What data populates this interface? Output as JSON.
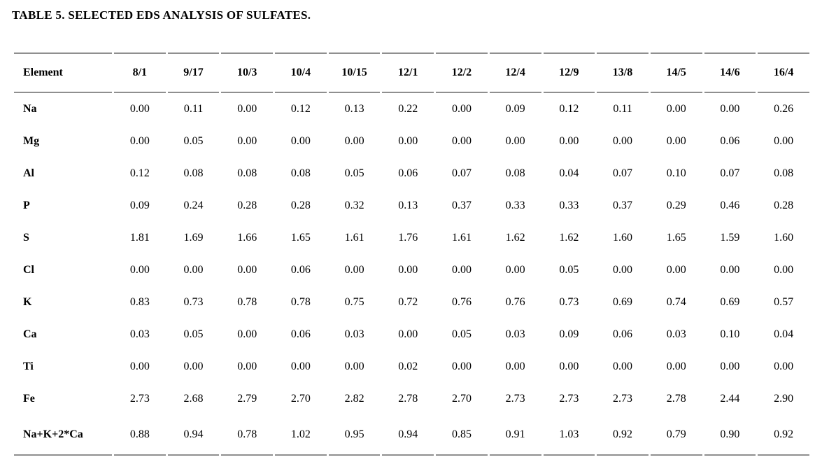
{
  "document": {
    "title": "TABLE 5. SELECTED EDS ANALYSIS OF SULFATES."
  },
  "styles": {
    "rule_color": "#8f8f8f",
    "text_color": "#000000",
    "background": "#ffffff"
  },
  "table": {
    "columns": [
      "Element",
      "8/1",
      "9/17",
      "10/3",
      "10/4",
      "10/15",
      "12/1",
      "12/2",
      "12/4",
      "12/9",
      "13/8",
      "14/5",
      "14/6",
      "16/4"
    ],
    "rows": [
      {
        "element": "Na",
        "values": [
          "0.00",
          "0.11",
          "0.00",
          "0.12",
          "0.13",
          "0.22",
          "0.00",
          "0.09",
          "0.12",
          "0.11",
          "0.00",
          "0.00",
          "0.26"
        ]
      },
      {
        "element": "Mg",
        "values": [
          "0.00",
          "0.05",
          "0.00",
          "0.00",
          "0.00",
          "0.00",
          "0.00",
          "0.00",
          "0.00",
          "0.00",
          "0.00",
          "0.06",
          "0.00"
        ]
      },
      {
        "element": "Al",
        "values": [
          "0.12",
          "0.08",
          "0.08",
          "0.08",
          "0.05",
          "0.06",
          "0.07",
          "0.08",
          "0.04",
          "0.07",
          "0.10",
          "0.07",
          "0.08"
        ]
      },
      {
        "element": "P",
        "values": [
          "0.09",
          "0.24",
          "0.28",
          "0.28",
          "0.32",
          "0.13",
          "0.37",
          "0.33",
          "0.33",
          "0.37",
          "0.29",
          "0.46",
          "0.28"
        ]
      },
      {
        "element": "S",
        "values": [
          "1.81",
          "1.69",
          "1.66",
          "1.65",
          "1.61",
          "1.76",
          "1.61",
          "1.62",
          "1.62",
          "1.60",
          "1.65",
          "1.59",
          "1.60"
        ]
      },
      {
        "element": "Cl",
        "values": [
          "0.00",
          "0.00",
          "0.00",
          "0.06",
          "0.00",
          "0.00",
          "0.00",
          "0.00",
          "0.05",
          "0.00",
          "0.00",
          "0.00",
          "0.00"
        ]
      },
      {
        "element": "K",
        "values": [
          "0.83",
          "0.73",
          "0.78",
          "0.78",
          "0.75",
          "0.72",
          "0.76",
          "0.76",
          "0.73",
          "0.69",
          "0.74",
          "0.69",
          "0.57"
        ]
      },
      {
        "element": "Ca",
        "values": [
          "0.03",
          "0.05",
          "0.00",
          "0.06",
          "0.03",
          "0.00",
          "0.05",
          "0.03",
          "0.09",
          "0.06",
          "0.03",
          "0.10",
          "0.04"
        ]
      },
      {
        "element": "Ti",
        "values": [
          "0.00",
          "0.00",
          "0.00",
          "0.00",
          "0.00",
          "0.02",
          "0.00",
          "0.00",
          "0.00",
          "0.00",
          "0.00",
          "0.00",
          "0.00"
        ]
      },
      {
        "element": "Fe",
        "values": [
          "2.73",
          "2.68",
          "2.79",
          "2.70",
          "2.82",
          "2.78",
          "2.70",
          "2.73",
          "2.73",
          "2.73",
          "2.78",
          "2.44",
          "2.90"
        ]
      },
      {
        "element": "Na+K+2*Ca",
        "values": [
          "0.88",
          "0.94",
          "0.78",
          "1.02",
          "0.95",
          "0.94",
          "0.85",
          "0.91",
          "1.03",
          "0.92",
          "0.79",
          "0.90",
          "0.92"
        ]
      }
    ]
  }
}
